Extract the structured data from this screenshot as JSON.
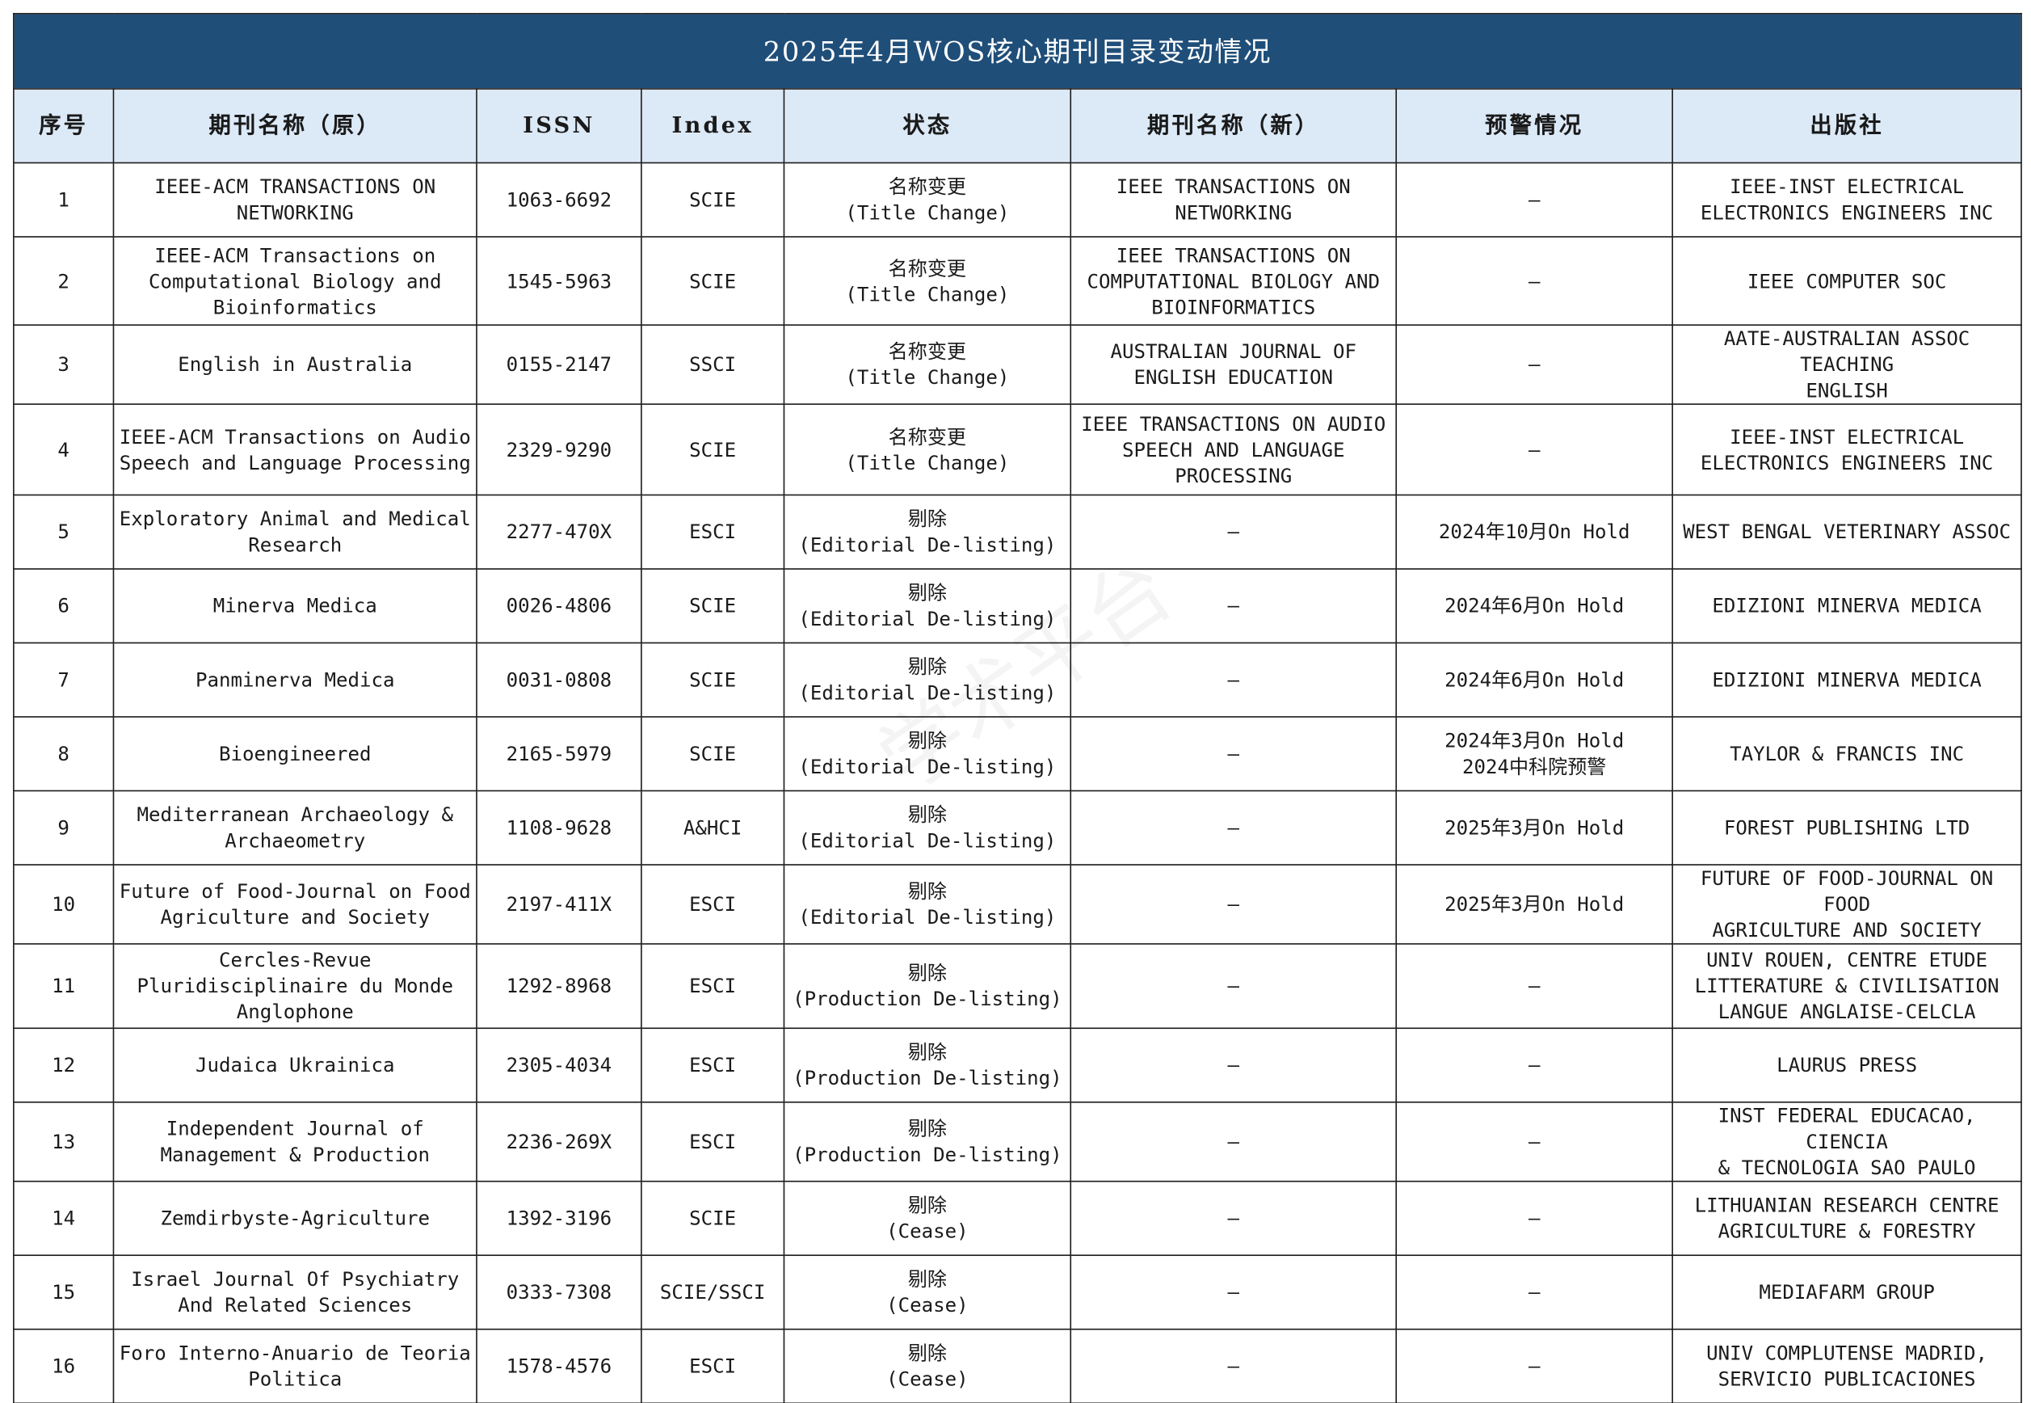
{
  "title": "2025年4月WOS核心期刊目录变动情况",
  "watermark_text": "学术平台",
  "colors": {
    "title_bg": "#1f4e79",
    "header_bg": "#dce9f7",
    "status_text": "#e02020",
    "warning_text": "#3b6ea8"
  },
  "headers": {
    "no": "序号",
    "old_name": "期刊名称（原）",
    "issn": "ISSN",
    "index": "Index",
    "status": "状态",
    "new_name": "期刊名称（新）",
    "warning": "预警情况",
    "publisher": "出版社"
  },
  "rows": [
    {
      "no": "1",
      "old_name": "IEEE-ACM TRANSACTIONS ON\nNETWORKING",
      "issn": "1063-6692",
      "index": "SCIE",
      "status": "名称变更\n(Title Change)",
      "new_name": "IEEE TRANSACTIONS ON\nNETWORKING",
      "warning": "—",
      "publisher": "IEEE-INST ELECTRICAL\nELECTRONICS ENGINEERS INC"
    },
    {
      "no": "2",
      "old_name": "IEEE-ACM Transactions on\nComputational Biology and\nBioinformatics",
      "issn": "1545-5963",
      "index": "SCIE",
      "status": "名称变更\n(Title Change)",
      "new_name": "IEEE TRANSACTIONS ON\nCOMPUTATIONAL BIOLOGY AND\nBIOINFORMATICS",
      "warning": "—",
      "publisher": "IEEE COMPUTER SOC"
    },
    {
      "no": "3",
      "old_name": "English in Australia",
      "issn": "0155-2147",
      "index": "SSCI",
      "status": "名称变更\n(Title Change)",
      "new_name": "AUSTRALIAN JOURNAL OF\nENGLISH EDUCATION",
      "warning": "—",
      "publisher": "AATE-AUSTRALIAN ASSOC TEACHING\nENGLISH"
    },
    {
      "no": "4",
      "old_name": "IEEE-ACM Transactions on Audio\nSpeech and Language Processing",
      "issn": "2329-9290",
      "index": "SCIE",
      "status": "名称变更\n(Title Change)",
      "new_name": "IEEE TRANSACTIONS ON AUDIO\nSPEECH AND LANGUAGE\nPROCESSING",
      "warning": "—",
      "publisher": "IEEE-INST ELECTRICAL\nELECTRONICS ENGINEERS INC"
    },
    {
      "no": "5",
      "old_name": "Exploratory Animal and Medical\nResearch",
      "issn": "2277-470X",
      "index": "ESCI",
      "status": "剔除\n(Editorial De-listing)",
      "new_name": "—",
      "warning": "2024年10月On Hold",
      "publisher": "WEST BENGAL VETERINARY ASSOC"
    },
    {
      "no": "6",
      "old_name": "Minerva Medica",
      "issn": "0026-4806",
      "index": "SCIE",
      "status": "剔除\n(Editorial De-listing)",
      "new_name": "—",
      "warning": "2024年6月On Hold",
      "publisher": "EDIZIONI MINERVA MEDICA"
    },
    {
      "no": "7",
      "old_name": "Panminerva Medica",
      "issn": "0031-0808",
      "index": "SCIE",
      "status": "剔除\n(Editorial De-listing)",
      "new_name": "—",
      "warning": "2024年6月On Hold",
      "publisher": "EDIZIONI MINERVA MEDICA"
    },
    {
      "no": "8",
      "old_name": "Bioengineered",
      "issn": "2165-5979",
      "index": "SCIE",
      "status": "剔除\n(Editorial De-listing)",
      "new_name": "—",
      "warning": "2024年3月On Hold\n2024中科院预警",
      "publisher": "TAYLOR & FRANCIS INC"
    },
    {
      "no": "9",
      "old_name": "Mediterranean Archaeology &\nArchaeometry",
      "issn": "1108-9628",
      "index": "A&HCI",
      "status": "剔除\n(Editorial De-listing)",
      "new_name": "—",
      "warning": "2025年3月On Hold",
      "publisher": "FOREST PUBLISHING LTD"
    },
    {
      "no": "10",
      "old_name": "Future of Food-Journal on Food\nAgriculture and Society",
      "issn": "2197-411X",
      "index": "ESCI",
      "status": "剔除\n(Editorial De-listing)",
      "new_name": "—",
      "warning": "2025年3月On Hold",
      "publisher": "FUTURE OF FOOD-JOURNAL ON FOOD\nAGRICULTURE AND SOCIETY"
    },
    {
      "no": "11",
      "old_name": "Cercles-Revue\nPluridisciplinaire du Monde\nAnglophone",
      "issn": "1292-8968",
      "index": "ESCI",
      "status": "剔除\n(Production De-listing)",
      "new_name": "—",
      "warning": "—",
      "publisher": "UNIV ROUEN, CENTRE ETUDE\nLITTERATURE & CIVILISATION\nLANGUE ANGLAISE-CELCLA"
    },
    {
      "no": "12",
      "old_name": "Judaica Ukrainica",
      "issn": "2305-4034",
      "index": "ESCI",
      "status": "剔除\n(Production De-listing)",
      "new_name": "—",
      "warning": "—",
      "publisher": "LAURUS PRESS"
    },
    {
      "no": "13",
      "old_name": "Independent Journal of\nManagement & Production",
      "issn": "2236-269X",
      "index": "ESCI",
      "status": "剔除\n(Production De-listing)",
      "new_name": "—",
      "warning": "—",
      "publisher": "INST FEDERAL EDUCACAO, CIENCIA\n& TECNOLOGIA SAO PAULO"
    },
    {
      "no": "14",
      "old_name": "Zemdirbyste-Agriculture",
      "issn": "1392-3196",
      "index": "SCIE",
      "status": "剔除\n(Cease)",
      "new_name": "—",
      "warning": "—",
      "publisher": "LITHUANIAN RESEARCH CENTRE\nAGRICULTURE & FORESTRY"
    },
    {
      "no": "15",
      "old_name": "Israel Journal Of Psychiatry\nAnd Related Sciences",
      "issn": "0333-7308",
      "index": "SCIE/SSCI",
      "status": "剔除\n(Cease)",
      "new_name": "—",
      "warning": "—",
      "publisher": "MEDIAFARM GROUP"
    },
    {
      "no": "16",
      "old_name": "Foro Interno-Anuario de Teoria\nPolitica",
      "issn": "1578-4576",
      "index": "ESCI",
      "status": "剔除\n(Cease)",
      "new_name": "—",
      "warning": "—",
      "publisher": "UNIV COMPLUTENSE MADRID,\nSERVICIO PUBLICACIONES"
    }
  ]
}
